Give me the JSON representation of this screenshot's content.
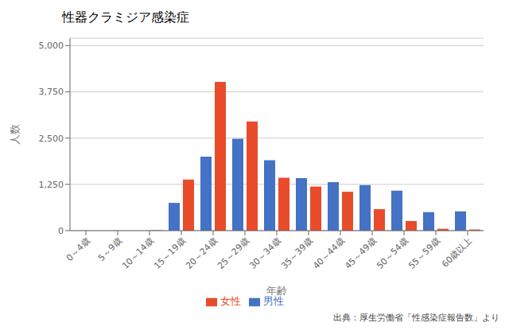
{
  "chart_data": {
    "type": "bar",
    "title": "性器クラミジア感染症",
    "xlabel": "年齢",
    "ylabel": "人数",
    "categories": [
      "0～4歳",
      "5～9歳",
      "10～14歳",
      "15～19歳",
      "20～24歳",
      "25～29歳",
      "30～34歳",
      "35～39歳",
      "40～44歳",
      "45～49歳",
      "50～54歳",
      "55～59歳",
      "60歳以上"
    ],
    "series": [
      {
        "name": "男性",
        "color": "#4472c4",
        "values": [
          0,
          0,
          0,
          750,
          2000,
          2480,
          1900,
          1420,
          1310,
          1230,
          1080,
          500,
          520
        ]
      },
      {
        "name": "女性",
        "color": "#e84c2b",
        "values": [
          0,
          0,
          10,
          1380,
          4020,
          2950,
          1430,
          1190,
          1050,
          580,
          260,
          50,
          30
        ]
      }
    ],
    "ylim": [
      0,
      5200
    ],
    "yticks": [
      0,
      {
        "value": 1250,
        "label": "1,250"
      },
      {
        "value": 2500,
        "label": "2,500"
      },
      {
        "value": 3750,
        "label": "3,750"
      },
      {
        "value": 5000,
        "label": "5,000"
      }
    ],
    "grid": true,
    "legend": "bottom",
    "source": "出典：厚生労働省「性感染症報告数」より"
  }
}
